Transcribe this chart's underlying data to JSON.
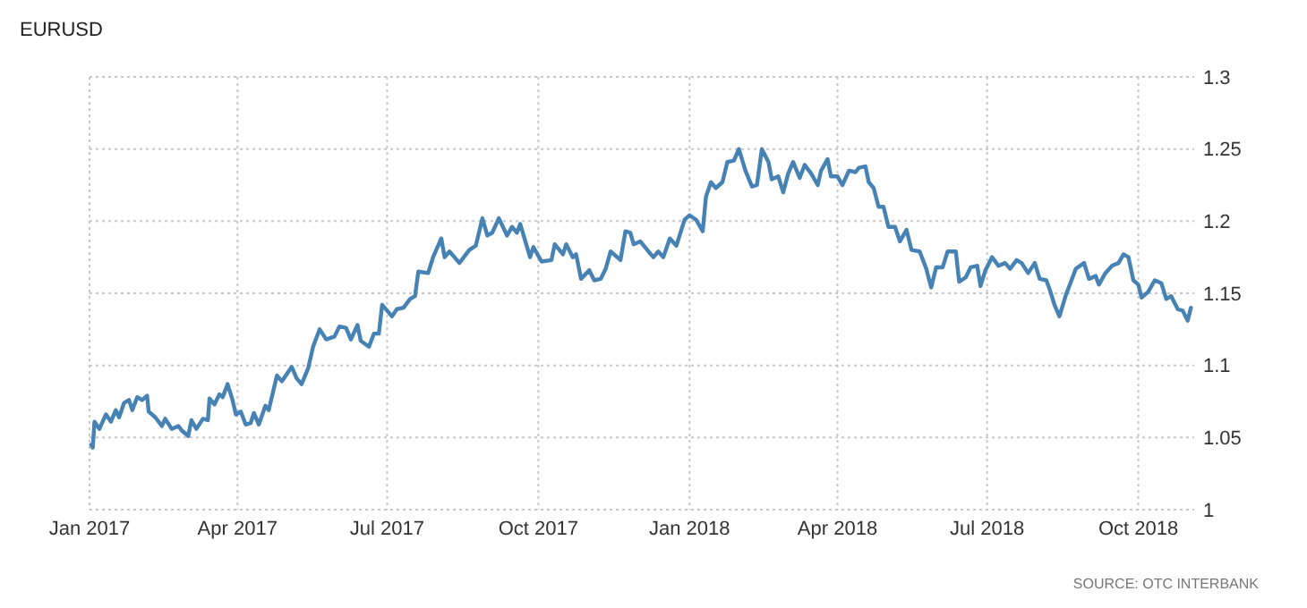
{
  "chart_data": {
    "type": "line",
    "title": "EURUSD",
    "annotations": [
      "SOURCE: OTC INTERBANK"
    ],
    "xlim": [
      "2017-01-01",
      "2018-11-04"
    ],
    "xticks": [
      {
        "value": "2017-01-01",
        "label": "Jan 2017"
      },
      {
        "value": "2017-04-01",
        "label": "Apr 2017"
      },
      {
        "value": "2017-07-01",
        "label": "Jul 2017"
      },
      {
        "value": "2017-10-01",
        "label": "Oct 2017"
      },
      {
        "value": "2018-01-01",
        "label": "Jan 2018"
      },
      {
        "value": "2018-04-01",
        "label": "Apr 2018"
      },
      {
        "value": "2018-07-01",
        "label": "Jul 2018"
      },
      {
        "value": "2018-10-01",
        "label": "Oct 2018"
      }
    ],
    "ylim": [
      1,
      1.3
    ],
    "yticks": [
      1,
      1.05,
      1.1,
      1.15,
      1.2,
      1.25,
      1.3
    ],
    "grid": true,
    "line_style": "solid",
    "x": [
      "2017-01-02",
      "2017-01-03",
      "2017-01-04",
      "2017-01-07",
      "2017-01-11",
      "2017-01-14",
      "2017-01-17",
      "2017-01-19",
      "2017-01-22",
      "2017-01-25",
      "2017-01-27",
      "2017-01-30",
      "2017-02-02",
      "2017-02-05",
      "2017-02-06",
      "2017-02-10",
      "2017-02-14",
      "2017-02-16",
      "2017-02-20",
      "2017-02-24",
      "2017-02-26",
      "2017-03-02",
      "2017-03-04",
      "2017-03-07",
      "2017-03-11",
      "2017-03-14",
      "2017-03-15",
      "2017-03-18",
      "2017-03-21",
      "2017-03-23",
      "2017-03-26",
      "2017-03-29",
      "2017-03-31",
      "2017-04-03",
      "2017-04-06",
      "2017-04-09",
      "2017-04-11",
      "2017-04-14",
      "2017-04-18",
      "2017-04-20",
      "2017-04-25",
      "2017-04-28",
      "2017-05-04",
      "2017-05-07",
      "2017-05-10",
      "2017-05-14",
      "2017-05-17",
      "2017-05-21",
      "2017-05-25",
      "2017-05-30",
      "2017-06-02",
      "2017-06-06",
      "2017-06-09",
      "2017-06-13",
      "2017-06-15",
      "2017-06-20",
      "2017-06-23",
      "2017-06-26",
      "2017-06-28",
      "2017-07-04",
      "2017-07-07",
      "2017-07-11",
      "2017-07-15",
      "2017-07-18",
      "2017-07-20",
      "2017-07-26",
      "2017-07-29",
      "2017-08-03",
      "2017-08-05",
      "2017-08-08",
      "2017-08-11",
      "2017-08-14",
      "2017-08-20",
      "2017-08-24",
      "2017-08-28",
      "2017-08-31",
      "2017-09-03",
      "2017-09-07",
      "2017-09-12",
      "2017-09-15",
      "2017-09-18",
      "2017-09-20",
      "2017-09-26",
      "2017-09-28",
      "2017-10-03",
      "2017-10-09",
      "2017-10-11",
      "2017-10-16",
      "2017-10-18",
      "2017-10-22",
      "2017-10-24",
      "2017-10-27",
      "2017-11-01",
      "2017-11-04",
      "2017-11-08",
      "2017-11-11",
      "2017-11-14",
      "2017-11-20",
      "2017-11-23",
      "2017-11-26",
      "2017-11-28",
      "2017-12-02",
      "2017-12-07",
      "2017-12-10",
      "2017-12-13",
      "2017-12-16",
      "2017-12-20",
      "2017-12-24",
      "2017-12-29",
      "2018-01-01",
      "2018-01-05",
      "2018-01-09",
      "2018-01-11",
      "2018-01-14",
      "2018-01-17",
      "2018-01-21",
      "2018-01-24",
      "2018-01-28",
      "2018-01-31",
      "2018-02-04",
      "2018-02-08",
      "2018-02-11",
      "2018-02-14",
      "2018-02-18",
      "2018-02-20",
      "2018-02-24",
      "2018-02-27",
      "2018-03-02",
      "2018-03-05",
      "2018-03-09",
      "2018-03-12",
      "2018-03-16",
      "2018-03-20",
      "2018-03-22",
      "2018-03-26",
      "2018-03-28",
      "2018-04-01",
      "2018-04-04",
      "2018-04-08",
      "2018-04-12",
      "2018-04-14",
      "2018-04-18",
      "2018-04-20",
      "2018-04-23",
      "2018-04-26",
      "2018-04-29",
      "2018-05-02",
      "2018-05-06",
      "2018-05-09",
      "2018-05-13",
      "2018-05-16",
      "2018-05-21",
      "2018-05-25",
      "2018-05-28",
      "2018-05-31",
      "2018-06-04",
      "2018-06-07",
      "2018-06-12",
      "2018-06-14",
      "2018-06-18",
      "2018-06-21",
      "2018-06-25",
      "2018-06-27",
      "2018-06-30",
      "2018-07-04",
      "2018-07-08",
      "2018-07-12",
      "2018-07-15",
      "2018-07-19",
      "2018-07-22",
      "2018-07-26",
      "2018-07-30",
      "2018-08-02",
      "2018-08-06",
      "2018-08-08",
      "2018-08-11",
      "2018-08-14",
      "2018-08-18",
      "2018-08-20",
      "2018-08-24",
      "2018-08-29",
      "2018-09-01",
      "2018-09-05",
      "2018-09-07",
      "2018-09-11",
      "2018-09-15",
      "2018-09-19",
      "2018-09-22",
      "2018-09-25",
      "2018-09-28",
      "2018-10-01",
      "2018-10-03",
      "2018-10-07",
      "2018-10-11",
      "2018-10-15",
      "2018-10-18",
      "2018-10-21",
      "2018-10-25",
      "2018-10-28",
      "2018-10-31",
      "2018-11-02"
    ],
    "series": [
      {
        "color": "#4682b4",
        "values": [
          1.045,
          1.043,
          1.061,
          1.056,
          1.066,
          1.061,
          1.069,
          1.064,
          1.074,
          1.076,
          1.069,
          1.078,
          1.076,
          1.079,
          1.068,
          1.064,
          1.058,
          1.063,
          1.056,
          1.058,
          1.055,
          1.051,
          1.062,
          1.056,
          1.063,
          1.062,
          1.077,
          1.073,
          1.08,
          1.078,
          1.087,
          1.076,
          1.066,
          1.068,
          1.059,
          1.06,
          1.067,
          1.059,
          1.072,
          1.069,
          1.093,
          1.089,
          1.099,
          1.091,
          1.087,
          1.098,
          1.113,
          1.125,
          1.118,
          1.12,
          1.127,
          1.126,
          1.118,
          1.128,
          1.117,
          1.113,
          1.122,
          1.122,
          1.142,
          1.134,
          1.139,
          1.14,
          1.146,
          1.148,
          1.165,
          1.164,
          1.175,
          1.188,
          1.175,
          1.179,
          1.175,
          1.171,
          1.18,
          1.183,
          1.202,
          1.19,
          1.192,
          1.202,
          1.19,
          1.196,
          1.192,
          1.198,
          1.175,
          1.182,
          1.172,
          1.173,
          1.184,
          1.177,
          1.184,
          1.175,
          1.177,
          1.16,
          1.166,
          1.159,
          1.16,
          1.167,
          1.179,
          1.173,
          1.193,
          1.192,
          1.184,
          1.186,
          1.179,
          1.175,
          1.179,
          1.175,
          1.188,
          1.183,
          1.201,
          1.204,
          1.201,
          1.193,
          1.217,
          1.227,
          1.223,
          1.227,
          1.241,
          1.242,
          1.25,
          1.235,
          1.224,
          1.225,
          1.25,
          1.241,
          1.229,
          1.231,
          1.22,
          1.233,
          1.241,
          1.23,
          1.239,
          1.233,
          1.225,
          1.235,
          1.243,
          1.231,
          1.231,
          1.225,
          1.235,
          1.234,
          1.237,
          1.238,
          1.227,
          1.223,
          1.21,
          1.21,
          1.196,
          1.196,
          1.186,
          1.194,
          1.18,
          1.179,
          1.167,
          1.154,
          1.168,
          1.168,
          1.179,
          1.179,
          1.158,
          1.161,
          1.168,
          1.169,
          1.155,
          1.166,
          1.175,
          1.169,
          1.171,
          1.167,
          1.173,
          1.171,
          1.164,
          1.171,
          1.16,
          1.159,
          1.153,
          1.142,
          1.134,
          1.149,
          1.155,
          1.167,
          1.171,
          1.16,
          1.162,
          1.156,
          1.164,
          1.169,
          1.171,
          1.177,
          1.175,
          1.159,
          1.156,
          1.147,
          1.151,
          1.159,
          1.157,
          1.146,
          1.148,
          1.139,
          1.138,
          1.131,
          1.14
        ]
      }
    ]
  }
}
